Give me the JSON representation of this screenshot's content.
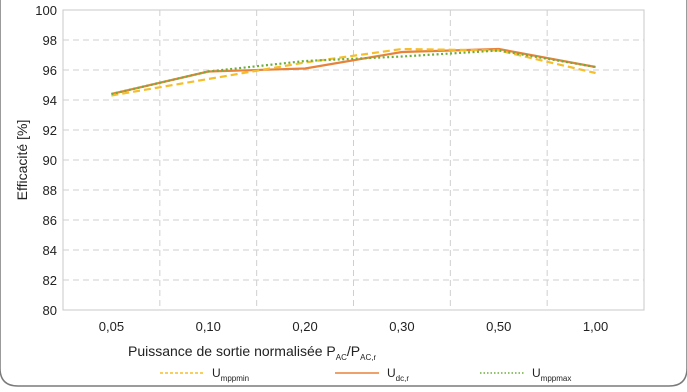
{
  "chart_data": {
    "type": "line",
    "categories": [
      "0,05",
      "0,10",
      "0,20",
      "0,30",
      "0,50",
      "1,00"
    ],
    "ylabel": "Efficacité [%]",
    "xlabel": {
      "main": "Puissance de sortie normalisée P",
      "sub1": "AC",
      "slash": "/P",
      "sub2": "AC,r"
    },
    "ylim": [
      80,
      100
    ],
    "yticks": [
      80,
      82,
      84,
      86,
      88,
      90,
      92,
      94,
      96,
      98,
      100
    ],
    "grid": true,
    "legend_position": "bottom",
    "series": [
      {
        "name": "U",
        "sub": "mppmin",
        "color": "#F5BE2A",
        "style": "dashed",
        "values": [
          94.3,
          95.4,
          96.5,
          97.4,
          97.3,
          95.8
        ]
      },
      {
        "name": "U",
        "sub": "dc,r",
        "color": "#E8823A",
        "style": "solid",
        "values": [
          94.4,
          95.9,
          96.1,
          97.2,
          97.4,
          96.2
        ]
      },
      {
        "name": "U",
        "sub": "mppmax",
        "color": "#6BAE3A",
        "style": "dotted",
        "values": [
          94.4,
          95.9,
          96.6,
          96.9,
          97.3,
          96.2
        ]
      }
    ]
  }
}
